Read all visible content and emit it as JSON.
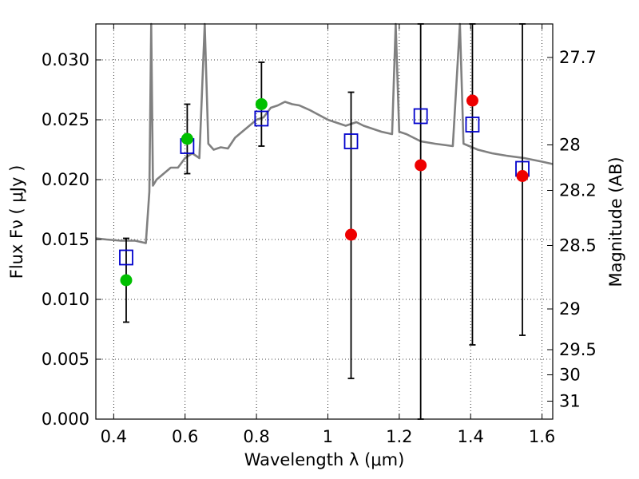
{
  "chart_data": {
    "type": "scatter",
    "xlabel": "Wavelength  λ (μm)",
    "ylabel": "Flux  Fν  ( μJy )",
    "ylabel_right": "Magnitude (AB)",
    "xlim": [
      0.35,
      1.63
    ],
    "ylim": [
      0.0,
      0.033
    ],
    "grid": true,
    "x_ticks": [
      0.4,
      0.6,
      0.8,
      1.0,
      1.2,
      1.4,
      1.6
    ],
    "x_tick_labels": [
      "0.4",
      "0.6",
      "0.8",
      "1",
      "1.2",
      "1.4",
      "1.6"
    ],
    "y_ticks": [
      0.0,
      0.005,
      0.01,
      0.015,
      0.02,
      0.025,
      0.03
    ],
    "y_tick_labels": [
      "0.000",
      "0.005",
      "0.010",
      "0.015",
      "0.020",
      "0.025",
      "0.030"
    ],
    "right_ticks": [
      {
        "label": "27.7",
        "flux": 0.0302
      },
      {
        "label": "28",
        "flux": 0.0229
      },
      {
        "label": "28.2",
        "flux": 0.0191
      },
      {
        "label": "28.5",
        "flux": 0.0145
      },
      {
        "label": "29",
        "flux": 0.0092
      },
      {
        "label": "29.5",
        "flux": 0.0058
      },
      {
        "label": "30",
        "flux": 0.0037
      },
      {
        "label": "31",
        "flux": 0.0015
      }
    ],
    "model_sed": {
      "color": "#808080",
      "points": [
        [
          0.35,
          0.0151
        ],
        [
          0.38,
          0.015
        ],
        [
          0.42,
          0.0149
        ],
        [
          0.46,
          0.0149
        ],
        [
          0.49,
          0.0147
        ],
        [
          0.5,
          0.019
        ],
        [
          0.505,
          0.033
        ],
        [
          0.51,
          0.0195
        ],
        [
          0.52,
          0.02
        ],
        [
          0.54,
          0.0205
        ],
        [
          0.56,
          0.021
        ],
        [
          0.58,
          0.021
        ],
        [
          0.6,
          0.0218
        ],
        [
          0.62,
          0.0222
        ],
        [
          0.64,
          0.0218
        ],
        [
          0.655,
          0.033
        ],
        [
          0.665,
          0.023
        ],
        [
          0.68,
          0.0225
        ],
        [
          0.7,
          0.0227
        ],
        [
          0.72,
          0.0226
        ],
        [
          0.74,
          0.0235
        ],
        [
          0.76,
          0.024
        ],
        [
          0.78,
          0.0245
        ],
        [
          0.8,
          0.025
        ],
        [
          0.82,
          0.0252
        ],
        [
          0.84,
          0.026
        ],
        [
          0.86,
          0.0262
        ],
        [
          0.88,
          0.0265
        ],
        [
          0.9,
          0.0263
        ],
        [
          0.92,
          0.0262
        ],
        [
          0.95,
          0.0258
        ],
        [
          1.0,
          0.025
        ],
        [
          1.05,
          0.0245
        ],
        [
          1.08,
          0.0248
        ],
        [
          1.1,
          0.0245
        ],
        [
          1.15,
          0.024
        ],
        [
          1.18,
          0.0238
        ],
        [
          1.19,
          0.033
        ],
        [
          1.2,
          0.024
        ],
        [
          1.22,
          0.0238
        ],
        [
          1.26,
          0.0232
        ],
        [
          1.3,
          0.023
        ],
        [
          1.35,
          0.0228
        ],
        [
          1.37,
          0.033
        ],
        [
          1.38,
          0.023
        ],
        [
          1.42,
          0.0225
        ],
        [
          1.46,
          0.0222
        ],
        [
          1.5,
          0.022
        ],
        [
          1.55,
          0.0218
        ],
        [
          1.6,
          0.0215
        ],
        [
          1.63,
          0.0213
        ]
      ]
    },
    "series": [
      {
        "marker": "square",
        "color": "#0000cc",
        "points": [
          {
            "x": 0.435,
            "y": 0.0135
          },
          {
            "x": 0.606,
            "y": 0.0228
          },
          {
            "x": 0.814,
            "y": 0.0251
          },
          {
            "x": 1.065,
            "y": 0.0232
          },
          {
            "x": 1.26,
            "y": 0.0253
          },
          {
            "x": 1.405,
            "y": 0.0246
          },
          {
            "x": 1.545,
            "y": 0.0209
          }
        ]
      },
      {
        "marker": "circle",
        "color": "#00c000",
        "points": [
          {
            "x": 0.435,
            "y": 0.0116,
            "err_low": 0.0081,
            "err_high": 0.0151
          },
          {
            "x": 0.606,
            "y": 0.0234,
            "err_low": 0.0205,
            "err_high": 0.0263
          },
          {
            "x": 0.814,
            "y": 0.0263,
            "err_low": 0.0228,
            "err_high": 0.0298
          }
        ]
      },
      {
        "marker": "circle",
        "color": "#ee0000",
        "points": [
          {
            "x": 1.065,
            "y": 0.0154,
            "err_low": 0.0034,
            "err_high": 0.0273
          },
          {
            "x": 1.26,
            "y": 0.0212,
            "err_low": 0.0,
            "err_high": 0.033
          },
          {
            "x": 1.405,
            "y": 0.0266,
            "err_low": 0.0062,
            "err_high": 0.033
          },
          {
            "x": 1.545,
            "y": 0.0203,
            "err_low": 0.007,
            "err_high": 0.033
          }
        ]
      }
    ]
  }
}
